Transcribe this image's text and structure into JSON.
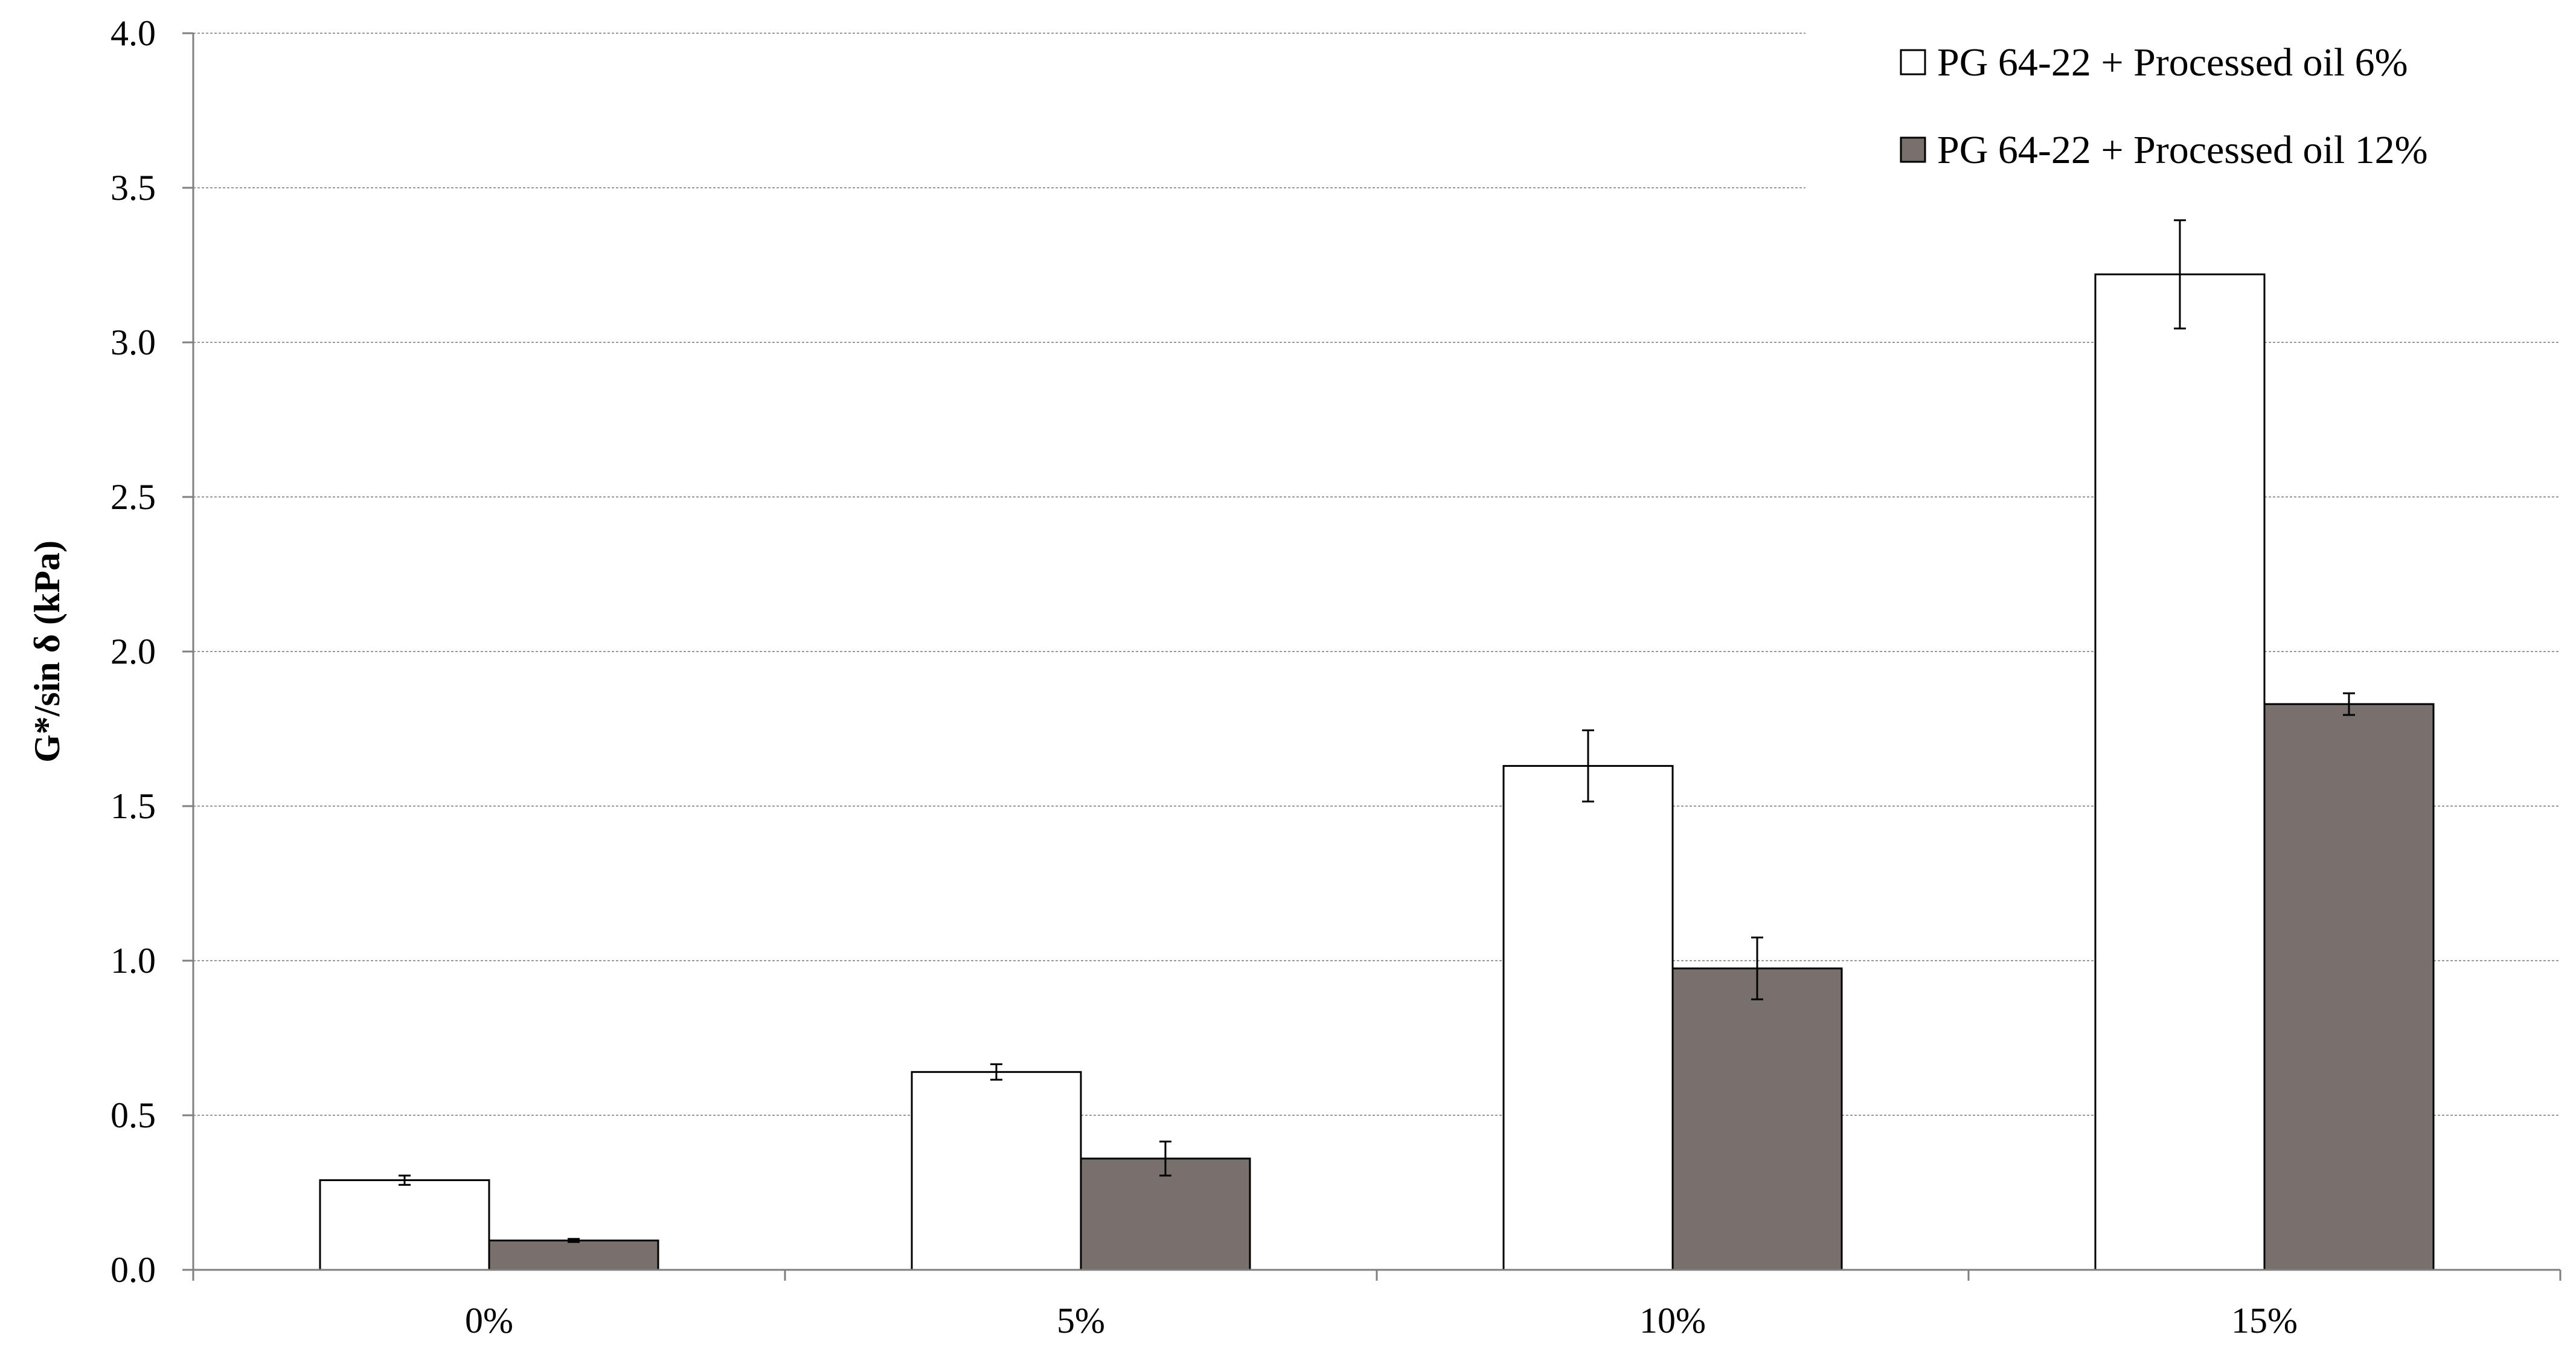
{
  "chart_data": {
    "type": "bar",
    "title": "",
    "xlabel": "",
    "ylabel": "G*/sin δ (kPa)",
    "categories": [
      "0%",
      "5%",
      "10%",
      "15%"
    ],
    "ylim": [
      0,
      4.0
    ],
    "yticks": [
      "0.0",
      "0.5",
      "1.0",
      "1.5",
      "2.0",
      "2.5",
      "3.0",
      "3.5",
      "4.0"
    ],
    "grid": true,
    "legend_position": "top-right",
    "series": [
      {
        "name": "PG 64-22 + Processed oil 6%",
        "color": "#ffffff",
        "values": [
          0.29,
          0.64,
          1.63,
          3.22
        ],
        "errors": [
          0.015,
          0.025,
          0.115,
          0.175
        ]
      },
      {
        "name": "PG 64-22 + Processed oil 12%",
        "color": "#77706c",
        "values": [
          0.095,
          0.36,
          0.975,
          1.83
        ],
        "errors": [
          0.005,
          0.055,
          0.1,
          0.035
        ]
      }
    ]
  }
}
